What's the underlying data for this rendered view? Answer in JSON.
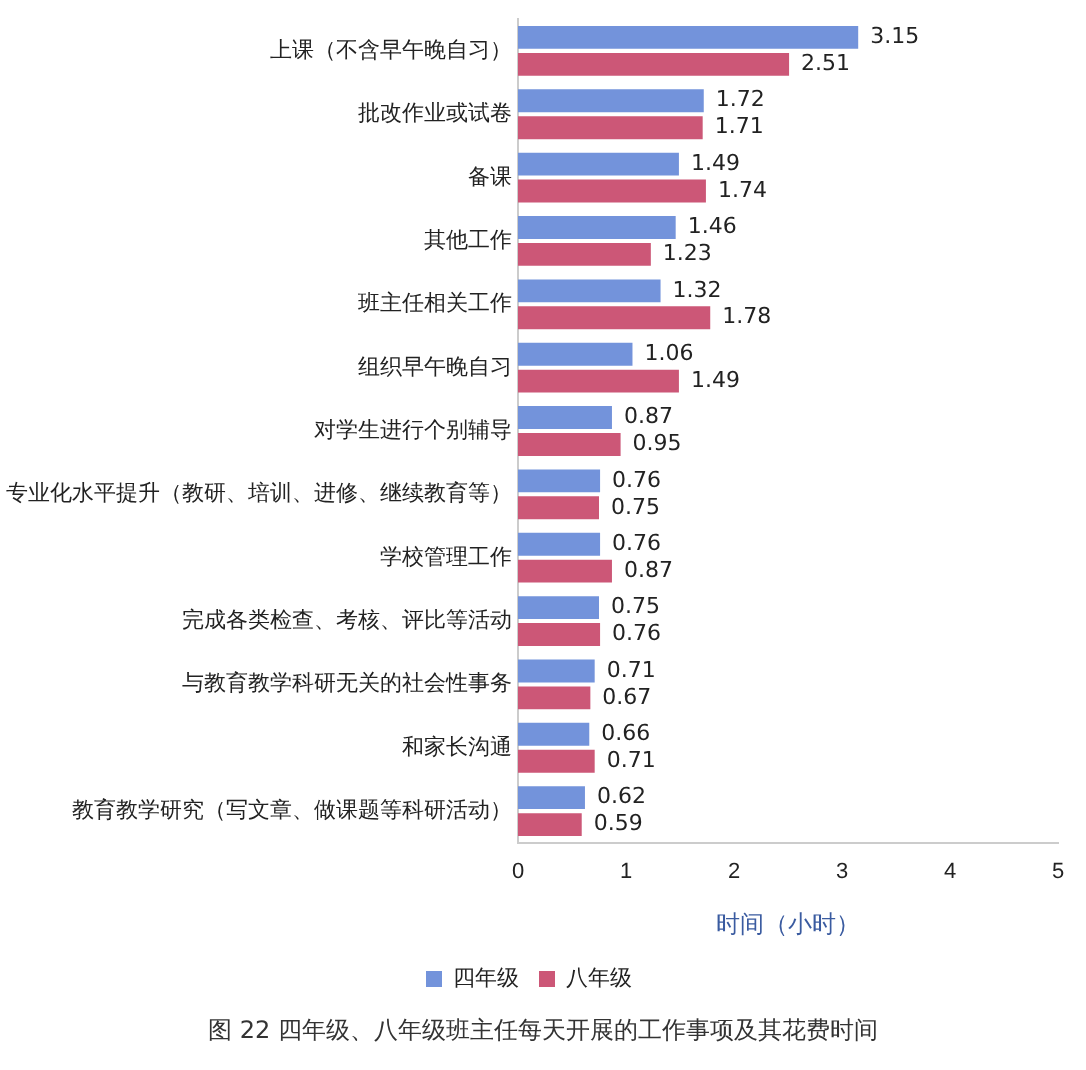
{
  "chart_data": {
    "type": "bar",
    "orientation": "horizontal",
    "title": "图 22  四年级、八年级班主任每天开展的工作事项及其花费时间",
    "xlabel": "时间（小时）",
    "categories": [
      "上课（不含早午晚自习）",
      "批改作业或试卷",
      "备课",
      "其他工作",
      "班主任相关工作",
      "组织早午晚自习",
      "对学生进行个别辅导",
      "专业化水平提升（教研、培训、进修、继续教育等）",
      "学校管理工作",
      "完成各类检查、考核、评比等活动",
      "与教育教学科研无关的社会性事务",
      "和家长沟通",
      "教育教学研究（写文章、做课题等科研活动）"
    ],
    "series": [
      {
        "name": "四年级",
        "color": "#7393db",
        "values": [
          3.15,
          1.72,
          1.49,
          1.46,
          1.32,
          1.06,
          0.87,
          0.76,
          0.76,
          0.75,
          0.71,
          0.66,
          0.62
        ]
      },
      {
        "name": "八年级",
        "color": "#cc5777",
        "values": [
          2.51,
          1.71,
          1.74,
          1.23,
          1.78,
          1.49,
          0.95,
          0.75,
          0.87,
          0.76,
          0.67,
          0.71,
          0.59
        ]
      }
    ],
    "xlim": [
      0,
      5
    ],
    "xticks": [
      0,
      1,
      2,
      3,
      4,
      5
    ],
    "grid": false,
    "legend": "bottom",
    "data_labels": true
  }
}
